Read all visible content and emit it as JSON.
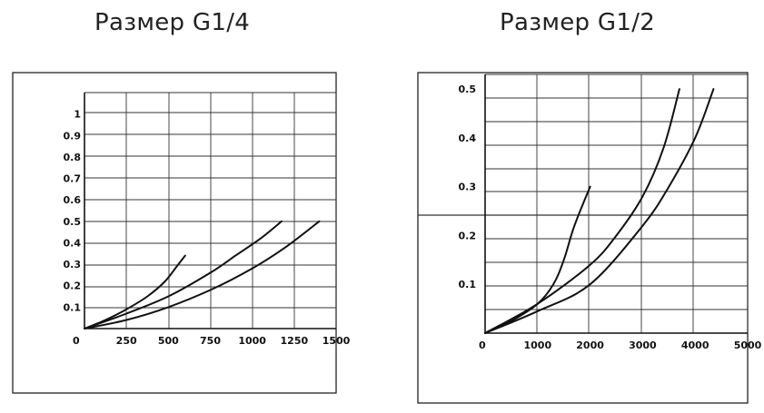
{
  "chart_data": [
    {
      "type": "line",
      "title": "Размер G1/4",
      "xlabel": "",
      "ylabel": "",
      "xlim": [
        0,
        1500
      ],
      "ylim": [
        0,
        1.1
      ],
      "origin_label": "0",
      "x_ticks": [
        250,
        500,
        750,
        1000,
        1250,
        1500
      ],
      "x_tick_labels": [
        "250",
        "500",
        "750",
        "1000",
        "1250",
        "1500"
      ],
      "y_ticks": [
        0.1,
        0.2,
        0.3,
        0.4,
        0.5,
        0.6,
        0.7,
        0.8,
        0.9,
        1
      ],
      "y_tick_labels": [
        "0.1",
        "0.2",
        "0.3",
        "0.4",
        "0.5",
        "0.6",
        "0.7",
        "0.8",
        "0.9",
        "1"
      ],
      "grid": true,
      "series": [
        {
          "x": [
            0,
            125,
            250,
            375,
            480,
            550,
            600
          ],
          "y": [
            0,
            0.04,
            0.09,
            0.15,
            0.22,
            0.29,
            0.34
          ]
        },
        {
          "x": [
            0,
            250,
            500,
            750,
            900,
            1050,
            1175
          ],
          "y": [
            0,
            0.07,
            0.15,
            0.26,
            0.34,
            0.42,
            0.5
          ]
        },
        {
          "x": [
            0,
            250,
            500,
            750,
            1000,
            1200,
            1400
          ],
          "y": [
            0,
            0.04,
            0.1,
            0.18,
            0.28,
            0.38,
            0.5
          ]
        }
      ]
    },
    {
      "type": "line",
      "title": "Размер G1/2",
      "xlabel": "",
      "ylabel": "",
      "xlim": [
        0,
        5000
      ],
      "ylim": [
        0,
        0.53
      ],
      "origin_label": "0",
      "x_ticks": [
        1000,
        2000,
        3000,
        4000,
        5000
      ],
      "x_tick_labels": [
        "1000",
        "2000",
        "3000",
        "4000",
        "5000"
      ],
      "y_ticks": [
        0.1,
        0.2,
        0.3,
        0.4,
        0.5
      ],
      "y_tick_labels": [
        "0.1",
        "0.2",
        "0.3",
        "0.4",
        "0.5"
      ],
      "grid": true,
      "series": [
        {
          "x": [
            0,
            500,
            1000,
            1300,
            1500,
            1700,
            2000
          ],
          "y": [
            0,
            0.025,
            0.06,
            0.1,
            0.15,
            0.22,
            0.3
          ]
        },
        {
          "x": [
            0,
            1000,
            2000,
            2500,
            3000,
            3400,
            3700
          ],
          "y": [
            0,
            0.06,
            0.14,
            0.2,
            0.28,
            0.38,
            0.5
          ]
        },
        {
          "x": [
            0,
            1000,
            2000,
            3000,
            3500,
            4000,
            4350
          ],
          "y": [
            0,
            0.045,
            0.1,
            0.22,
            0.3,
            0.4,
            0.5
          ]
        }
      ]
    }
  ]
}
